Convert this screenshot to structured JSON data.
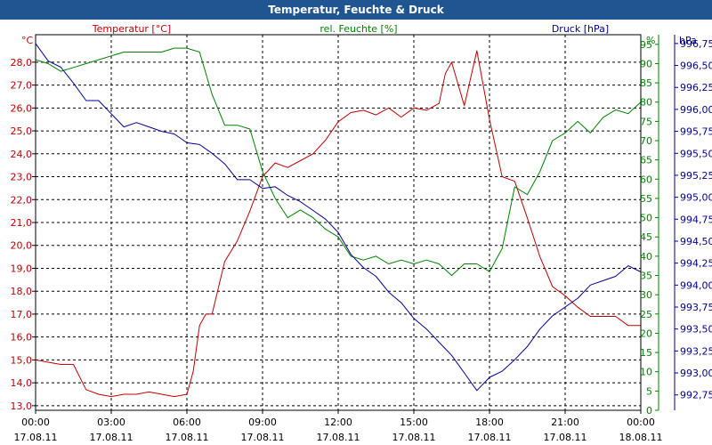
{
  "window": {
    "title": "Temperatur, Feuchte & Druck"
  },
  "chart_data": {
    "type": "line",
    "title": "Temperatur, Feuchte & Druck",
    "x_ticks": [
      {
        "time": "00:00",
        "date": "17.08.11"
      },
      {
        "time": "03:00",
        "date": "17.08.11"
      },
      {
        "time": "06:00",
        "date": "17.08.11"
      },
      {
        "time": "09:00",
        "date": "17.08.11"
      },
      {
        "time": "12:00",
        "date": "17.08.11"
      },
      {
        "time": "15:00",
        "date": "17.08.11"
      },
      {
        "time": "18:00",
        "date": "17.08.11"
      },
      {
        "time": "21:00",
        "date": "17.08.11"
      },
      {
        "time": "00:00",
        "date": "18.08.11"
      }
    ],
    "xlim": [
      "17.08.11 00:00",
      "18.08.11 00:00"
    ],
    "grid": true,
    "axes": {
      "temperature": {
        "unit": "°C",
        "ylim": [
          12.8,
          29.2
        ],
        "ticks": [
          "13,0",
          "14,0",
          "15,0",
          "16,0",
          "17,0",
          "18,0",
          "19,0",
          "20,0",
          "21,0",
          "22,0",
          "23,0",
          "24,0",
          "25,0",
          "26,0",
          "27,0",
          "28,0"
        ],
        "tick_values": [
          13,
          14,
          15,
          16,
          17,
          18,
          19,
          20,
          21,
          22,
          23,
          24,
          25,
          26,
          27,
          28
        ],
        "color": "#c00000",
        "side": "left"
      },
      "humidity": {
        "unit": "%",
        "ylim": [
          0,
          97.5
        ],
        "ticks": [
          "0",
          "5",
          "10",
          "15",
          "20",
          "25",
          "30",
          "35",
          "40",
          "45",
          "50",
          "55",
          "60",
          "65",
          "70",
          "75",
          "80",
          "85",
          "90",
          "95"
        ],
        "tick_values": [
          0,
          5,
          10,
          15,
          20,
          25,
          30,
          35,
          40,
          45,
          50,
          55,
          60,
          65,
          70,
          75,
          80,
          85,
          90,
          95
        ],
        "color": "#008000",
        "side": "right"
      },
      "pressure": {
        "unit": "hPa",
        "ylim": [
          992.575,
          996.85
        ],
        "ticks": [
          "992,75",
          "993,00",
          "993,25",
          "993,50",
          "993,75",
          "994,00",
          "994,25",
          "994,50",
          "994,75",
          "995,00",
          "995,25",
          "995,50",
          "995,75",
          "996,00",
          "996,25",
          "996,50",
          "996,75"
        ],
        "tick_values": [
          992.75,
          993.0,
          993.25,
          993.5,
          993.75,
          994.0,
          994.25,
          994.5,
          994.75,
          995.0,
          995.25,
          995.5,
          995.75,
          996.0,
          996.25,
          996.5,
          996.75
        ],
        "color": "#000090",
        "side": "right"
      }
    },
    "series": [
      {
        "name": "Temperatur [°C]",
        "axis": "temperature",
        "color": "#c00000",
        "x_hours": [
          0,
          0.5,
          1,
          1.5,
          2,
          2.5,
          3,
          3.5,
          4,
          4.5,
          5,
          5.5,
          6,
          6.25,
          6.5,
          6.75,
          7,
          7.5,
          8,
          8.5,
          9,
          9.5,
          10,
          10.5,
          11,
          11.5,
          12,
          12.5,
          13,
          13.5,
          14,
          14.5,
          15,
          15.5,
          16,
          16.25,
          16.5,
          17,
          17.5,
          18,
          18.5,
          19,
          19.5,
          20,
          20.5,
          21,
          21.5,
          22,
          22.5,
          23,
          23.5,
          24
        ],
        "values": [
          15.0,
          14.9,
          14.8,
          14.8,
          13.7,
          13.5,
          13.4,
          13.5,
          13.5,
          13.6,
          13.5,
          13.4,
          13.5,
          14.5,
          16.5,
          17.0,
          17.0,
          19.3,
          20.2,
          21.5,
          23.0,
          23.6,
          23.4,
          23.7,
          24.0,
          24.6,
          25.4,
          25.8,
          25.9,
          25.7,
          26.0,
          25.6,
          26.0,
          25.9,
          26.2,
          27.5,
          28.0,
          26.1,
          28.5,
          25.5,
          23.0,
          22.8,
          21.2,
          19.5,
          18.2,
          17.8,
          17.3,
          16.9,
          16.9,
          16.9,
          16.5,
          16.5
        ]
      },
      {
        "name": "rel. Feuchte [%]",
        "axis": "humidity",
        "color": "#008000",
        "x_hours": [
          0,
          0.5,
          1,
          1.5,
          2,
          2.5,
          3,
          3.5,
          4,
          4.5,
          5,
          5.5,
          6,
          6.5,
          7,
          7.5,
          8,
          8.5,
          9,
          9.5,
          10,
          10.5,
          11,
          11.5,
          12,
          12.5,
          13,
          13.5,
          14,
          14.5,
          15,
          15.5,
          16,
          16.5,
          17,
          17.5,
          18,
          18.5,
          19,
          19.5,
          20,
          20.5,
          21,
          21.5,
          22,
          22.5,
          23,
          23.5,
          24
        ],
        "values": [
          91,
          90,
          88,
          89,
          90,
          91,
          92,
          93,
          93,
          93,
          93,
          94,
          94,
          93,
          82,
          74,
          74,
          73,
          62,
          55,
          50,
          52,
          50,
          47,
          45,
          40,
          39,
          40,
          38,
          39,
          38,
          39,
          38,
          35,
          38,
          38,
          36,
          42,
          58,
          56,
          62,
          70,
          72,
          75,
          72,
          76,
          78,
          77,
          80
        ]
      },
      {
        "name": "Druck [hPa]",
        "axis": "pressure",
        "color": "#000090",
        "x_hours": [
          0,
          0.5,
          1,
          1.5,
          2,
          2.5,
          3,
          3.5,
          4,
          4.5,
          5,
          5.5,
          6,
          6.5,
          7,
          7.5,
          8,
          8.5,
          9,
          9.5,
          10,
          10.5,
          11,
          11.5,
          12,
          12.5,
          13,
          13.5,
          14,
          14.5,
          15,
          15.5,
          16,
          16.5,
          17,
          17.5,
          18,
          18.5,
          19,
          19.5,
          20,
          20.5,
          21,
          21.5,
          22,
          22.5,
          23,
          23.5,
          24
        ],
        "values": [
          996.75,
          996.55,
          996.48,
          996.3,
          996.1,
          996.1,
          995.95,
          995.8,
          995.85,
          995.8,
          995.75,
          995.72,
          995.62,
          995.6,
          995.5,
          995.38,
          995.2,
          995.2,
          995.1,
          995.12,
          995.02,
          994.95,
          994.85,
          994.75,
          994.6,
          994.35,
          994.2,
          994.1,
          993.92,
          993.8,
          993.62,
          993.5,
          993.35,
          993.2,
          993.0,
          992.8,
          992.95,
          993.02,
          993.15,
          993.3,
          993.5,
          993.65,
          993.75,
          993.85,
          994.0,
          994.05,
          994.1,
          994.22,
          994.15
        ]
      }
    ]
  }
}
